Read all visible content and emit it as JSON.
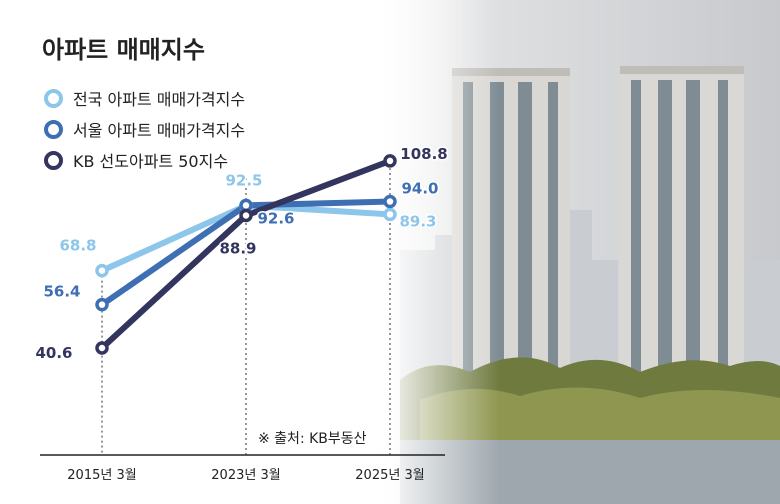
{
  "title": "아파트 매매지수",
  "source": "※ 출처: KB부동산",
  "colors": {
    "national": "#8cc6ea",
    "seoul": "#3f6fb3",
    "kb50": "#33355f"
  },
  "chart_data": {
    "type": "line",
    "title": "아파트 매매지수",
    "categories": [
      "2015년 3월",
      "2023년 3월",
      "2025년 3월"
    ],
    "series": [
      {
        "name": "전국 아파트 매매가격지수",
        "values": [
          68.8,
          92.5,
          89.3
        ],
        "color": "#8cc6ea"
      },
      {
        "name": "서울 아파트 매매가격지수",
        "values": [
          56.4,
          92.6,
          94.0
        ],
        "color": "#3f6fb3"
      },
      {
        "name": "KB 선도아파트 50지수",
        "values": [
          40.6,
          88.9,
          108.8
        ],
        "color": "#33355f"
      }
    ],
    "data_labels": [
      [
        "68.8",
        "92.5",
        "89.3"
      ],
      [
        "56.4",
        "92.6",
        "94.0"
      ],
      [
        "40.6",
        "88.9",
        "108.8"
      ]
    ],
    "ylim": [
      30,
      120
    ],
    "grid": false,
    "legend": "top-left"
  }
}
